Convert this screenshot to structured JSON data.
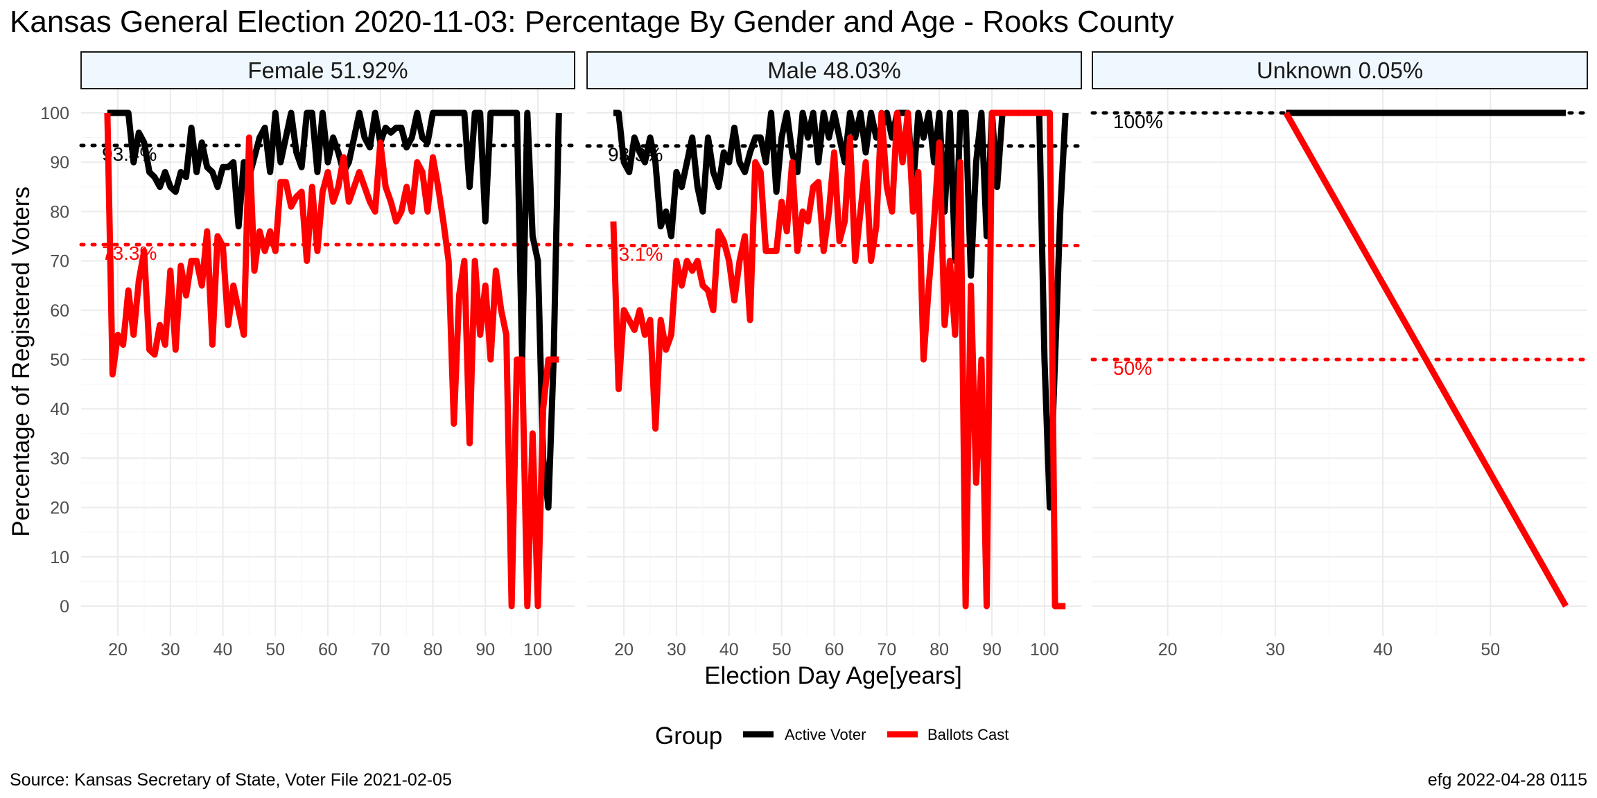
{
  "chart_data": {
    "type": "line",
    "title": "Kansas General Election 2020-11-03:  Percentage By Gender and Age - Rooks County",
    "xlabel": "Election Day Age[years]",
    "ylabel": "Percentage of Registered Voters",
    "ylim": [
      -4,
      104
    ],
    "yticks": [
      0,
      10,
      20,
      30,
      40,
      50,
      60,
      70,
      80,
      90,
      100
    ],
    "grid": true,
    "legend": {
      "title": "Group",
      "position": "bottom",
      "items": [
        {
          "label": "Active Voter",
          "color": "#000000"
        },
        {
          "label": "Ballots Cast",
          "color": "#ff0000"
        }
      ]
    },
    "caption_left": "Source:  Kansas Secretary of State, Voter File  2021-02-05",
    "caption_right": "efg 2022-04-28 0115",
    "panels": [
      {
        "strip": "Female 51.92%",
        "xlim": [
          13,
          107
        ],
        "xticks": [
          20,
          30,
          40,
          50,
          60,
          70,
          80,
          90,
          100
        ],
        "ref_lines": [
          {
            "value": 93.4,
            "label": "93.4%",
            "color": "#000000"
          },
          {
            "value": 73.3,
            "label": "73.3%",
            "color": "#ff0000"
          }
        ],
        "series": [
          {
            "name": "Active Voter",
            "color": "#000000",
            "x": [
              18,
              19,
              20,
              21,
              22,
              23,
              24,
              25,
              26,
              27,
              28,
              29,
              30,
              31,
              32,
              33,
              34,
              35,
              36,
              37,
              38,
              39,
              40,
              41,
              42,
              43,
              44,
              45,
              46,
              47,
              48,
              49,
              50,
              51,
              52,
              53,
              54,
              55,
              56,
              57,
              58,
              59,
              60,
              61,
              62,
              63,
              64,
              65,
              66,
              67,
              68,
              69,
              70,
              71,
              72,
              73,
              74,
              75,
              76,
              77,
              78,
              79,
              80,
              81,
              82,
              83,
              84,
              85,
              86,
              87,
              88,
              89,
              90,
              91,
              92,
              93,
              94,
              95,
              96,
              97,
              98,
              99,
              100,
              101,
              102,
              103,
              104
            ],
            "y": [
              100,
              100,
              100,
              100,
              100,
              90,
              96,
              94,
              88,
              87,
              85,
              88,
              85,
              84,
              88,
              87,
              97,
              88,
              94,
              89,
              88,
              85,
              89,
              89,
              90,
              77,
              90,
              87,
              91,
              95,
              97,
              88,
              100,
              90,
              95,
              100,
              92,
              89,
              100,
              100,
              88,
              100,
              90,
              95,
              92,
              88,
              90,
              95,
              100,
              95,
              93,
              100,
              94,
              97,
              96,
              97,
              97,
              93,
              95,
              100,
              95,
              94,
              100,
              100,
              100,
              100,
              100,
              100,
              100,
              85,
              100,
              100,
              78,
              100,
              100,
              100,
              100,
              100,
              100,
              50,
              100,
              75,
              70,
              30,
              20,
              50,
              100
            ]
          },
          {
            "name": "Ballots Cast",
            "color": "#ff0000",
            "x": [
              18,
              19,
              20,
              21,
              22,
              23,
              24,
              25,
              26,
              27,
              28,
              29,
              30,
              31,
              32,
              33,
              34,
              35,
              36,
              37,
              38,
              39,
              40,
              41,
              42,
              43,
              44,
              45,
              46,
              47,
              48,
              49,
              50,
              51,
              52,
              53,
              54,
              55,
              56,
              57,
              58,
              59,
              60,
              61,
              62,
              63,
              64,
              65,
              66,
              67,
              68,
              69,
              70,
              71,
              72,
              73,
              74,
              75,
              76,
              77,
              78,
              79,
              80,
              81,
              82,
              83,
              84,
              85,
              86,
              87,
              88,
              89,
              90,
              91,
              92,
              93,
              94,
              95,
              96,
              97,
              98,
              99,
              100,
              101,
              102,
              103,
              104
            ],
            "y": [
              100,
              47,
              55,
              53,
              64,
              55,
              66,
              72,
              52,
              51,
              57,
              53,
              68,
              52,
              69,
              63,
              70,
              70,
              65,
              76,
              53,
              75,
              73,
              57,
              65,
              60,
              55,
              95,
              68,
              76,
              72,
              76,
              72,
              86,
              86,
              81,
              83,
              84,
              70,
              85,
              72,
              84,
              88,
              82,
              85,
              91,
              82,
              85,
              88,
              85,
              82,
              80,
              94,
              85,
              82,
              78,
              80,
              85,
              80,
              90,
              88,
              80,
              91,
              85,
              78,
              70,
              37,
              63,
              70,
              33,
              70,
              55,
              65,
              50,
              68,
              60,
              55,
              0,
              50,
              50,
              0,
              35,
              0,
              40,
              50,
              50,
              50
            ]
          }
        ]
      },
      {
        "strip": "Male 48.03%",
        "xlim": [
          13,
          107
        ],
        "xticks": [
          20,
          30,
          40,
          50,
          60,
          70,
          80,
          90,
          100
        ],
        "ref_lines": [
          {
            "value": 93.3,
            "label": "93.3%",
            "color": "#000000"
          },
          {
            "value": 73.1,
            "label": "73.1%",
            "color": "#ff0000"
          }
        ],
        "series": [
          {
            "name": "Active Voter",
            "color": "#000000",
            "x": [
              18,
              19,
              20,
              21,
              22,
              23,
              24,
              25,
              26,
              27,
              28,
              29,
              30,
              31,
              32,
              33,
              34,
              35,
              36,
              37,
              38,
              39,
              40,
              41,
              42,
              43,
              44,
              45,
              46,
              47,
              48,
              49,
              50,
              51,
              52,
              53,
              54,
              55,
              56,
              57,
              58,
              59,
              60,
              61,
              62,
              63,
              64,
              65,
              66,
              67,
              68,
              69,
              70,
              71,
              72,
              73,
              74,
              75,
              76,
              77,
              78,
              79,
              80,
              81,
              82,
              83,
              84,
              85,
              86,
              87,
              88,
              89,
              90,
              91,
              92,
              93,
              94,
              95,
              96,
              97,
              98,
              99,
              100,
              101,
              102,
              103,
              104
            ],
            "y": [
              100,
              100,
              90,
              88,
              95,
              92,
              90,
              95,
              90,
              77,
              80,
              75,
              88,
              85,
              90,
              95,
              85,
              80,
              95,
              88,
              85,
              92,
              90,
              97,
              90,
              88,
              92,
              95,
              95,
              90,
              100,
              84,
              95,
              100,
              92,
              88,
              100,
              95,
              100,
              90,
              100,
              95,
              100,
              95,
              90,
              100,
              95,
              100,
              92,
              100,
              95,
              97,
              100,
              95,
              100,
              100,
              100,
              85,
              100,
              95,
              100,
              90,
              100,
              80,
              100,
              70,
              100,
              100,
              67,
              90,
              100,
              75,
              100,
              85,
              100,
              100,
              100,
              100,
              100,
              100,
              100,
              100,
              50,
              20,
              50,
              80,
              100
            ]
          },
          {
            "name": "Ballots Cast",
            "color": "#ff0000",
            "x": [
              18,
              19,
              20,
              21,
              22,
              23,
              24,
              25,
              26,
              27,
              28,
              29,
              30,
              31,
              32,
              33,
              34,
              35,
              36,
              37,
              38,
              39,
              40,
              41,
              42,
              43,
              44,
              45,
              46,
              47,
              48,
              49,
              50,
              51,
              52,
              53,
              54,
              55,
              56,
              57,
              58,
              59,
              60,
              61,
              62,
              63,
              64,
              65,
              66,
              67,
              68,
              69,
              70,
              71,
              72,
              73,
              74,
              75,
              76,
              77,
              78,
              79,
              80,
              81,
              82,
              83,
              84,
              85,
              86,
              87,
              88,
              89,
              90,
              91,
              92,
              93,
              94,
              95,
              96,
              97,
              98,
              99,
              100,
              101,
              102,
              103,
              104
            ],
            "y": [
              78,
              44,
              60,
              58,
              56,
              60,
              55,
              58,
              36,
              58,
              52,
              55,
              70,
              65,
              70,
              68,
              70,
              65,
              64,
              60,
              76,
              74,
              70,
              62,
              70,
              75,
              58,
              90,
              88,
              72,
              72,
              72,
              82,
              76,
              90,
              72,
              80,
              78,
              85,
              86,
              72,
              80,
              92,
              74,
              78,
              95,
              70,
              80,
              90,
              70,
              77,
              100,
              85,
              80,
              100,
              90,
              100,
              80,
              88,
              50,
              65,
              78,
              94,
              57,
              70,
              55,
              90,
              0,
              65,
              25,
              50,
              0,
              100,
              100,
              100,
              100,
              100,
              100,
              100,
              100,
              100,
              100,
              100,
              100,
              0,
              0,
              0
            ]
          }
        ]
      },
      {
        "strip": "Unknown 0.05%",
        "xlim": [
          13,
          59
        ],
        "xticks": [
          20,
          30,
          40,
          50
        ],
        "ref_lines": [
          {
            "value": 100,
            "label": "100%",
            "color": "#000000"
          },
          {
            "value": 50,
            "label": "50%",
            "color": "#ff0000"
          }
        ],
        "series": [
          {
            "name": "Active Voter",
            "color": "#000000",
            "x": [
              31,
              57
            ],
            "y": [
              100,
              100
            ]
          },
          {
            "name": "Ballots Cast",
            "color": "#ff0000",
            "x": [
              31,
              57
            ],
            "y": [
              100,
              0
            ]
          }
        ]
      }
    ]
  }
}
